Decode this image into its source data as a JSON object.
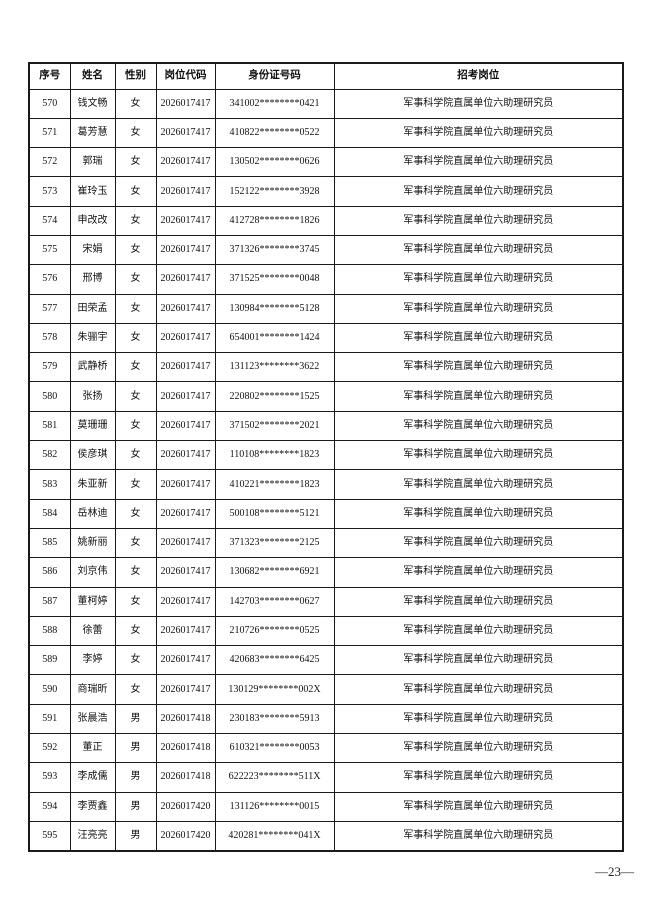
{
  "page": {
    "page_number": "—23—"
  },
  "table": {
    "headers": [
      "序号",
      "姓名",
      "性别",
      "岗位代码",
      "身份证号码",
      "招考岗位"
    ],
    "column_keys": [
      "index",
      "name",
      "gender",
      "job-code",
      "id-number",
      "position"
    ],
    "rows": [
      [
        "570",
        "钱文畅",
        "女",
        "2026017417",
        "341002********0421",
        "军事科学院直属单位六助理研究员"
      ],
      [
        "571",
        "葛芳慧",
        "女",
        "2026017417",
        "410822********0522",
        "军事科学院直属单位六助理研究员"
      ],
      [
        "572",
        "郭瑞",
        "女",
        "2026017417",
        "130502********0626",
        "军事科学院直属单位六助理研究员"
      ],
      [
        "573",
        "崔玲玉",
        "女",
        "2026017417",
        "152122********3928",
        "军事科学院直属单位六助理研究员"
      ],
      [
        "574",
        "申改改",
        "女",
        "2026017417",
        "412728********1826",
        "军事科学院直属单位六助理研究员"
      ],
      [
        "575",
        "宋娟",
        "女",
        "2026017417",
        "371326********3745",
        "军事科学院直属单位六助理研究员"
      ],
      [
        "576",
        "邢博",
        "女",
        "2026017417",
        "371525********0048",
        "军事科学院直属单位六助理研究员"
      ],
      [
        "577",
        "田荣孟",
        "女",
        "2026017417",
        "130984********5128",
        "军事科学院直属单位六助理研究员"
      ],
      [
        "578",
        "朱骊宇",
        "女",
        "2026017417",
        "654001********1424",
        "军事科学院直属单位六助理研究员"
      ],
      [
        "579",
        "武静桥",
        "女",
        "2026017417",
        "131123********3622",
        "军事科学院直属单位六助理研究员"
      ],
      [
        "580",
        "张扬",
        "女",
        "2026017417",
        "220802********1525",
        "军事科学院直属单位六助理研究员"
      ],
      [
        "581",
        "莫珊珊",
        "女",
        "2026017417",
        "371502********2021",
        "军事科学院直属单位六助理研究员"
      ],
      [
        "582",
        "侯彦琪",
        "女",
        "2026017417",
        "110108********1823",
        "军事科学院直属单位六助理研究员"
      ],
      [
        "583",
        "朱亚新",
        "女",
        "2026017417",
        "410221********1823",
        "军事科学院直属单位六助理研究员"
      ],
      [
        "584",
        "岳林迪",
        "女",
        "2026017417",
        "500108********5121",
        "军事科学院直属单位六助理研究员"
      ],
      [
        "585",
        "姚新丽",
        "女",
        "2026017417",
        "371323********2125",
        "军事科学院直属单位六助理研究员"
      ],
      [
        "586",
        "刘京伟",
        "女",
        "2026017417",
        "130682********6921",
        "军事科学院直属单位六助理研究员"
      ],
      [
        "587",
        "董柯婷",
        "女",
        "2026017417",
        "142703********0627",
        "军事科学院直属单位六助理研究员"
      ],
      [
        "588",
        "徐蕾",
        "女",
        "2026017417",
        "210726********0525",
        "军事科学院直属单位六助理研究员"
      ],
      [
        "589",
        "李婷",
        "女",
        "2026017417",
        "420683********6425",
        "军事科学院直属单位六助理研究员"
      ],
      [
        "590",
        "商瑞昕",
        "女",
        "2026017417",
        "130129********002X",
        "军事科学院直属单位六助理研究员"
      ],
      [
        "591",
        "张晨浩",
        "男",
        "2026017418",
        "230183********5913",
        "军事科学院直属单位六助理研究员"
      ],
      [
        "592",
        "董正",
        "男",
        "2026017418",
        "610321********0053",
        "军事科学院直属单位六助理研究员"
      ],
      [
        "593",
        "李成儒",
        "男",
        "2026017418",
        "622223********511X",
        "军事科学院直属单位六助理研究员"
      ],
      [
        "594",
        "李贾鑫",
        "男",
        "2026017420",
        "131126********0015",
        "军事科学院直属单位六助理研究员"
      ],
      [
        "595",
        "汪亮亮",
        "男",
        "2026017420",
        "420281********041X",
        "军事科学院直属单位六助理研究员"
      ]
    ]
  },
  "colors": {
    "border": "#1a1a1a",
    "text": "#121212",
    "background": "#ffffff"
  }
}
